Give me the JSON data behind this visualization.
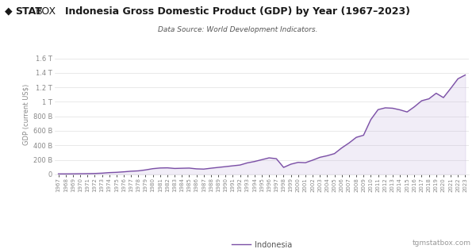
{
  "title": "Indonesia Gross Domestic Product (GDP) by Year (1967–2023)",
  "subtitle": "Data Source: World Development Indicators.",
  "ylabel": "GDP (current US$)",
  "line_color": "#7b4fa6",
  "fill_color": "#c9b8e0",
  "background_color": "#ffffff",
  "watermark": "tgmstatbox.com",
  "legend_label": "Indonesia",
  "years": [
    1967,
    1968,
    1969,
    1970,
    1971,
    1972,
    1973,
    1974,
    1975,
    1976,
    1977,
    1978,
    1979,
    1980,
    1981,
    1982,
    1983,
    1984,
    1985,
    1986,
    1987,
    1988,
    1989,
    1990,
    1991,
    1992,
    1993,
    1994,
    1995,
    1996,
    1997,
    1998,
    1999,
    2000,
    2001,
    2002,
    2003,
    2004,
    2005,
    2006,
    2007,
    2008,
    2009,
    2010,
    2011,
    2012,
    2013,
    2014,
    2015,
    2016,
    2017,
    2018,
    2019,
    2020,
    2021,
    2022,
    2023
  ],
  "gdp": [
    6000000000.0,
    5900000000.0,
    6800000000.0,
    8300000000.0,
    9600000000.0,
    11600000000.0,
    15900000000.0,
    23500000000.0,
    27500000000.0,
    34400000000.0,
    42800000000.0,
    47800000000.0,
    60800000000.0,
    78000000000.0,
    87200000000.0,
    89500000000.0,
    81000000000.0,
    83700000000.0,
    86000000000.0,
    75500000000.0,
    72000000000.0,
    84400000000.0,
    95500000000.0,
    106100000000.0,
    117500000000.0,
    128200000000.0,
    158000000000.0,
    176900000000.0,
    202100000000.0,
    227400000000.0,
    215700000000.0,
    95400000000.0,
    140000000000.0,
    165000000000.0,
    160400000000.0,
    195700000000.0,
    234800000000.0,
    256800000000.0,
    285900000000.0,
    364600000000.0,
    432200000000.0,
    510200000000.0,
    539600000000.0,
    755100000000.0,
    892900000000.0,
    917900000000.0,
    912500000000.0,
    890500000000.0,
    860900000000.0,
    932300000000.0,
    1015500000000.0,
    1042300000000.0,
    1119100000000.0,
    1059100000000.0,
    1186100000000.0,
    1319100000000.0,
    1371200000000.0
  ],
  "ylim": [
    0,
    1650000000000.0
  ],
  "ytick_values": [
    0,
    200000000000.0,
    400000000000.0,
    600000000000.0,
    800000000000.0,
    1000000000000.0,
    1200000000000.0,
    1400000000000.0,
    1600000000000.0
  ],
  "ytick_labels": [
    "0",
    "200 B",
    "400 B",
    "600 B",
    "800 B",
    "1 T",
    "1.2 T",
    "1.4 T",
    "1.6 T"
  ],
  "grid_color": "#e0e0e0",
  "tick_color": "#888888",
  "title_fontsize": 9,
  "subtitle_fontsize": 6.5,
  "ylabel_fontsize": 6,
  "tick_fontsize": 5,
  "ytick_fontsize": 6,
  "legend_fontsize": 7,
  "watermark_fontsize": 6.5
}
